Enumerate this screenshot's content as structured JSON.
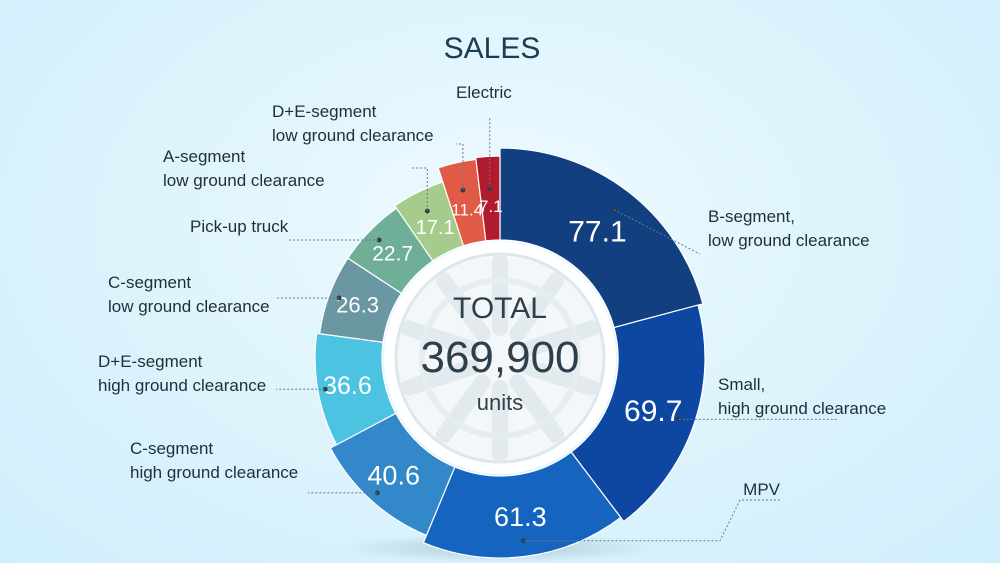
{
  "chart_data": {
    "type": "pie",
    "variant": "donut",
    "title": "SALES",
    "center": {
      "line1": "TOTAL",
      "line2": "369,900",
      "line3": "units"
    },
    "slices": [
      {
        "value": 77.1,
        "label": "77.1",
        "category": [
          "B-segment,",
          "low ground clearance"
        ],
        "color": "#123f80"
      },
      {
        "value": 69.7,
        "label": "69.7",
        "category": [
          "Small,",
          "high ground clearance"
        ],
        "color": "#0d47a1"
      },
      {
        "value": 61.3,
        "label": "61.3",
        "category": [
          "MPV"
        ],
        "color": "#1565c0"
      },
      {
        "value": 40.6,
        "label": "40.6",
        "category": [
          "C-segment",
          "high ground clearance"
        ],
        "color": "#3288c8"
      },
      {
        "value": 36.6,
        "label": "36.6",
        "category": [
          "D+E-segment",
          "high ground clearance"
        ],
        "color": "#4cc3e0"
      },
      {
        "value": 26.3,
        "label": "26.3",
        "category": [
          "C-segment",
          "low ground clearance"
        ],
        "color": "#6a97a2"
      },
      {
        "value": 22.7,
        "label": "22.7",
        "category": [
          "Pick-up truck"
        ],
        "color": "#6fae97"
      },
      {
        "value": 17.1,
        "label": "17.1",
        "category": [
          "A-segment",
          "low ground clearance"
        ],
        "color": "#a5cc8c"
      },
      {
        "value": 11.4,
        "label": "11.4",
        "category": [
          "D+E-segment",
          "low ground clearance"
        ],
        "color": "#e05a45"
      },
      {
        "value": 7.1,
        "label": "7.1",
        "category": [
          "Electric"
        ],
        "color": "#b01c2e"
      }
    ]
  }
}
